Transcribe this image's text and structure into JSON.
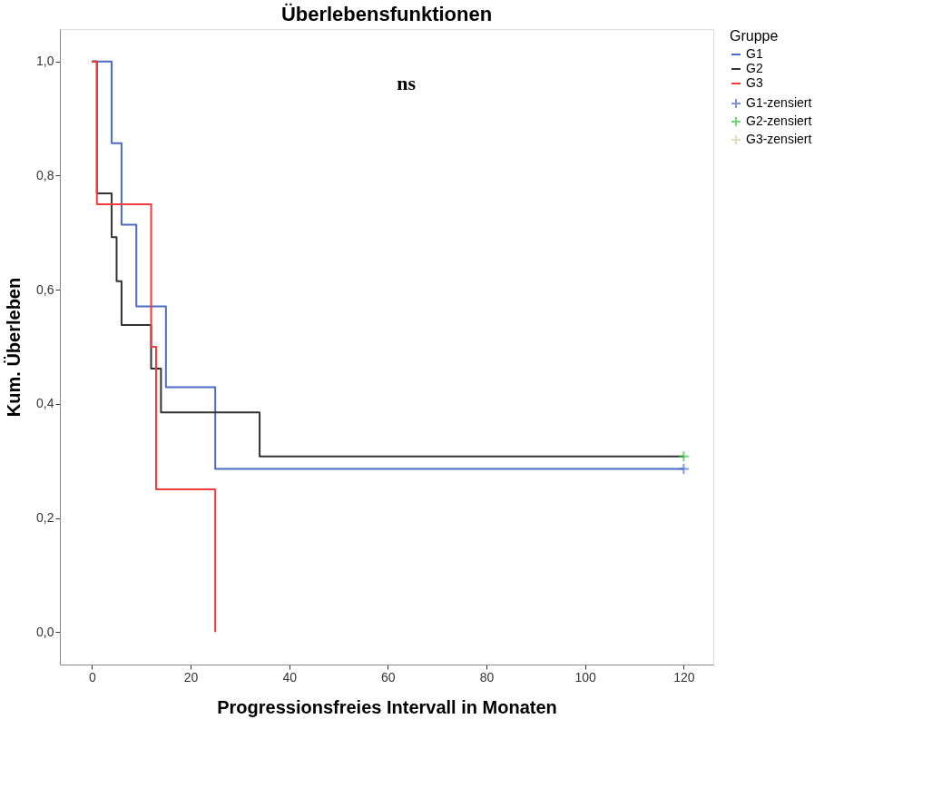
{
  "chart_data": {
    "type": "step",
    "title": "Überlebensfunktionen",
    "xlabel": "Progressionsfreies Intervall in Monaten",
    "ylabel": "Kum. Überleben",
    "legend_title": "Gruppe",
    "legend": "top right",
    "grid": false,
    "xlim": [
      -6.5,
      126
    ],
    "xticks": [
      0,
      20,
      40,
      60,
      80,
      100,
      120
    ],
    "ylim": [
      -0.057,
      1.057
    ],
    "yticks": [
      {
        "value": 0,
        "label": "0,0"
      },
      {
        "value": 0.2,
        "label": "0,2"
      },
      {
        "value": 0.4,
        "label": "0,4"
      },
      {
        "value": 0.6,
        "label": "0,6"
      },
      {
        "value": 0.8,
        "label": "0,8"
      },
      {
        "value": 1,
        "label": "1,0"
      }
    ],
    "annotations": [
      "ns"
    ],
    "series": [
      {
        "name": "G1",
        "color": "#4a6cc4",
        "x": [
          0,
          4,
          6,
          9,
          15,
          25,
          120
        ],
        "values": [
          1.0,
          0.857,
          0.714,
          0.571,
          0.429,
          0.286,
          0.286
        ]
      },
      {
        "name": "G2",
        "color": "#333333",
        "x": [
          0,
          1,
          4,
          5,
          6,
          12,
          14,
          34,
          120
        ],
        "values": [
          1.0,
          0.769,
          0.692,
          0.615,
          0.538,
          0.462,
          0.385,
          0.308,
          0.308
        ]
      },
      {
        "name": "G3",
        "color": "#f03c3c",
        "x": [
          0,
          1,
          12,
          13,
          25
        ],
        "values": [
          1.0,
          0.75,
          0.5,
          0.25,
          0.0
        ]
      },
      {
        "name": "G1-zensiert",
        "type": "scatter",
        "marker": "cross",
        "color": "#4a6cc4",
        "x": [
          120
        ],
        "values": [
          0.286
        ]
      },
      {
        "name": "G2-zensiert",
        "type": "scatter",
        "marker": "cross",
        "color": "#33c43c",
        "x": [
          120
        ],
        "values": [
          0.308
        ]
      },
      {
        "name": "G3-zensiert",
        "type": "scatter",
        "marker": "cross",
        "color": "#d8cc9c"
      }
    ]
  }
}
